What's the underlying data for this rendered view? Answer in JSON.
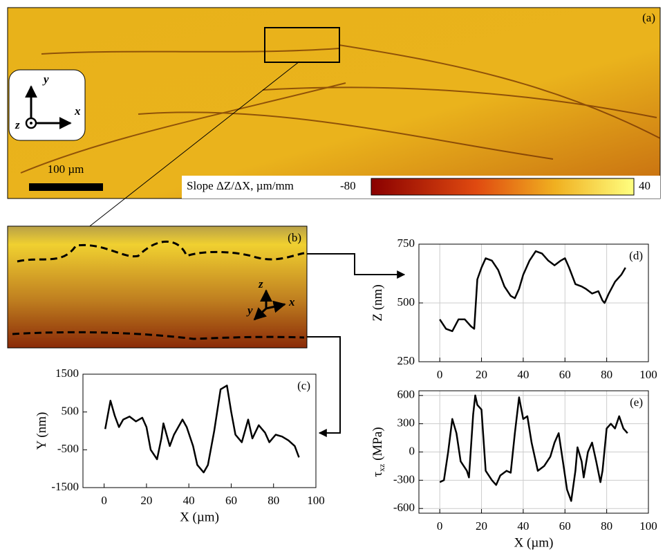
{
  "figure": {
    "panel_a": {
      "label": "(a)",
      "scale_bar": "100 µm",
      "axis_x": "x",
      "axis_y": "y",
      "axis_z": "z",
      "colorbar_label": "Slope ΔZ/ΔX, µm/mm",
      "colorbar_min": -80,
      "colorbar_max": 40
    },
    "panel_b": {
      "label": "(b)",
      "axis_x": "x",
      "axis_y": "y",
      "axis_z": "z"
    }
  },
  "chart_data": [
    {
      "type": "line",
      "label": "(c)",
      "xlabel": "X (µm)",
      "ylabel": "Y (nm)",
      "color": "#000000",
      "grid": false,
      "xlim": [
        -10,
        100
      ],
      "xticks": [
        0,
        20,
        40,
        60,
        80,
        100
      ],
      "ylim": [
        -1500,
        1500
      ],
      "yticks": [
        -1500,
        -500,
        500,
        1500
      ],
      "x": [
        0.5,
        3,
        5,
        7,
        9,
        12,
        15,
        18,
        20,
        22,
        25,
        27,
        28,
        31,
        33,
        37,
        39,
        42,
        44,
        47,
        49,
        52,
        55,
        58,
        60,
        62,
        65,
        68,
        70,
        73,
        76,
        78,
        81,
        84,
        87,
        90,
        92
      ],
      "values": [
        50,
        800,
        400,
        100,
        300,
        380,
        250,
        350,
        100,
        -500,
        -750,
        -200,
        200,
        -400,
        -100,
        300,
        100,
        -400,
        -900,
        -1100,
        -900,
        0,
        1100,
        1200,
        500,
        -100,
        -300,
        300,
        -200,
        150,
        -50,
        -300,
        -100,
        -150,
        -250,
        -400,
        -700
      ]
    },
    {
      "type": "line",
      "label": "(d)",
      "xlabel": "",
      "ylabel": "Z (nm)",
      "color": "#000000",
      "grid": true,
      "xlim": [
        -10,
        100
      ],
      "xticks": [
        0,
        20,
        40,
        60,
        80,
        100
      ],
      "ylim": [
        250,
        750
      ],
      "yticks": [
        250,
        500,
        750
      ],
      "x": [
        0,
        3,
        6,
        9,
        12,
        15,
        16.5,
        18,
        20,
        22,
        25,
        28,
        31,
        34,
        36,
        38,
        40,
        43,
        46,
        49,
        52,
        55,
        58,
        60,
        62,
        65,
        68,
        70,
        73,
        76,
        78,
        79,
        81,
        84,
        87,
        89
      ],
      "values": [
        430,
        390,
        380,
        430,
        430,
        400,
        390,
        600,
        650,
        690,
        680,
        640,
        570,
        530,
        520,
        560,
        620,
        680,
        720,
        710,
        680,
        660,
        680,
        690,
        650,
        580,
        570,
        560,
        540,
        550,
        510,
        500,
        540,
        590,
        620,
        650
      ]
    },
    {
      "type": "line",
      "label": "(e)",
      "xlabel": "X (µm)",
      "ylabel": "τ",
      "ylabel_sub": "xz",
      "ylabel_unit": " (MPa)",
      "color": "#000000",
      "grid": true,
      "xlim": [
        -10,
        100
      ],
      "xticks": [
        0,
        20,
        40,
        60,
        80,
        100
      ],
      "ylim": [
        -650,
        650
      ],
      "yticks": [
        -600,
        -300,
        0,
        300,
        600
      ],
      "x": [
        0,
        2,
        4,
        6,
        8,
        10,
        13,
        14,
        16,
        17,
        18,
        20,
        22,
        25,
        27,
        29,
        32,
        34,
        36,
        38,
        40,
        42,
        44,
        47,
        50,
        53,
        55,
        57,
        59,
        61,
        63,
        65,
        66,
        68,
        69,
        71,
        73,
        75,
        77,
        78,
        80,
        82,
        84,
        86,
        88,
        90
      ],
      "values": [
        -320,
        -300,
        0,
        350,
        200,
        -100,
        -200,
        -270,
        400,
        600,
        500,
        450,
        -200,
        -300,
        -350,
        -250,
        -200,
        -220,
        200,
        580,
        350,
        380,
        100,
        -200,
        -150,
        -50,
        100,
        200,
        -100,
        -400,
        -520,
        -200,
        50,
        -100,
        -270,
        0,
        100,
        -100,
        -320,
        -200,
        250,
        300,
        250,
        380,
        250,
        200
      ]
    }
  ]
}
